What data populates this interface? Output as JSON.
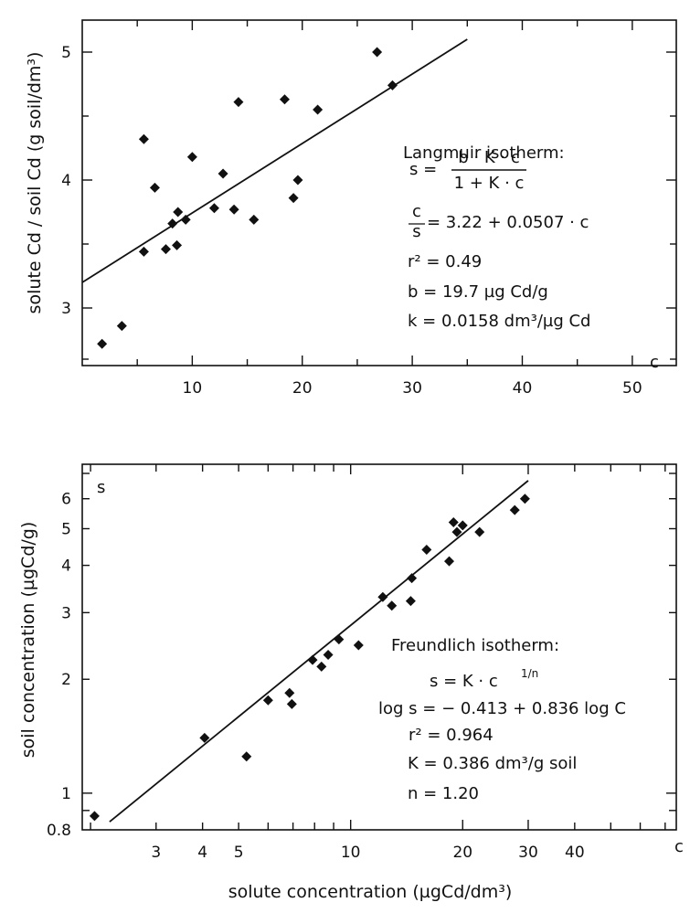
{
  "chart_data": [
    {
      "type": "scatter",
      "title": "",
      "ylabel": "solute Cd / soil Cd (g soil/dm³)",
      "xlabel": "",
      "x_corner_label": "c",
      "xlim": [
        0,
        54
      ],
      "ylim": [
        2.55,
        5.25
      ],
      "x_ticks": [
        10,
        20,
        30,
        40,
        50
      ],
      "y_ticks": [
        3,
        4,
        5
      ],
      "grid": false,
      "points": [
        {
          "x": 1.8,
          "y": 2.72
        },
        {
          "x": 3.6,
          "y": 2.86
        },
        {
          "x": 5.6,
          "y": 3.44
        },
        {
          "x": 5.6,
          "y": 4.32
        },
        {
          "x": 6.6,
          "y": 3.94
        },
        {
          "x": 7.6,
          "y": 3.46
        },
        {
          "x": 8.2,
          "y": 3.66
        },
        {
          "x": 8.6,
          "y": 3.49
        },
        {
          "x": 8.7,
          "y": 3.75
        },
        {
          "x": 9.4,
          "y": 3.69
        },
        {
          "x": 10.0,
          "y": 4.18
        },
        {
          "x": 12.0,
          "y": 3.78
        },
        {
          "x": 12.8,
          "y": 4.05
        },
        {
          "x": 13.8,
          "y": 3.77
        },
        {
          "x": 14.2,
          "y": 4.61
        },
        {
          "x": 15.6,
          "y": 3.69
        },
        {
          "x": 18.4,
          "y": 4.63
        },
        {
          "x": 19.2,
          "y": 3.86
        },
        {
          "x": 19.6,
          "y": 4.0
        },
        {
          "x": 21.4,
          "y": 4.55
        },
        {
          "x": 26.8,
          "y": 5.0
        },
        {
          "x": 28.2,
          "y": 4.74
        }
      ],
      "fit_line": {
        "x": [
          0,
          35
        ],
        "y": [
          3.2,
          5.1
        ]
      },
      "annotations": {
        "title": "Langmuir isotherm:",
        "eq_lhs": "s =",
        "eq_num": "b · K · c",
        "eq_den": "1 + K · c",
        "frac_num": "c",
        "frac_den": "s",
        "fit_rhs": "= 3.22 + 0.0507 · c",
        "r2": "r² = 0.49",
        "b": "b = 19.7 µg Cd/g",
        "k": "k = 0.0158 dm³/µg Cd"
      }
    },
    {
      "type": "scatter",
      "title": "",
      "ylabel": "soil concentration (µgCd/g)",
      "xlabel": "solute concentration (µgCd/dm³)",
      "y_corner_label": "s",
      "x_corner_label": "c",
      "x_scale": "log",
      "y_scale": "log",
      "xlim": [
        1.9,
        75
      ],
      "ylim": [
        0.8,
        7.4
      ],
      "x_ticks": [
        3,
        4,
        5,
        10,
        20,
        30,
        40
      ],
      "y_ticks": [
        0.8,
        1,
        2,
        3,
        4,
        5,
        6
      ],
      "grid": false,
      "points": [
        {
          "x": 2.05,
          "y": 0.87
        },
        {
          "x": 4.05,
          "y": 1.4
        },
        {
          "x": 5.25,
          "y": 1.25
        },
        {
          "x": 6.0,
          "y": 1.76
        },
        {
          "x": 6.85,
          "y": 1.84
        },
        {
          "x": 6.95,
          "y": 1.72
        },
        {
          "x": 7.9,
          "y": 2.25
        },
        {
          "x": 8.35,
          "y": 2.16
        },
        {
          "x": 8.7,
          "y": 2.32
        },
        {
          "x": 9.3,
          "y": 2.55
        },
        {
          "x": 10.5,
          "y": 2.46
        },
        {
          "x": 12.2,
          "y": 3.3
        },
        {
          "x": 12.9,
          "y": 3.13
        },
        {
          "x": 14.5,
          "y": 3.22
        },
        {
          "x": 14.6,
          "y": 3.7
        },
        {
          "x": 16.0,
          "y": 4.4
        },
        {
          "x": 18.4,
          "y": 4.1
        },
        {
          "x": 18.9,
          "y": 5.2
        },
        {
          "x": 19.3,
          "y": 4.9
        },
        {
          "x": 20.0,
          "y": 5.1
        },
        {
          "x": 22.2,
          "y": 4.9
        },
        {
          "x": 27.6,
          "y": 5.6
        },
        {
          "x": 29.4,
          "y": 6.0
        }
      ],
      "fit_line": {
        "x": [
          2.25,
          30
        ],
        "y": [
          0.84,
          6.7
        ]
      },
      "annotations": {
        "title": "Freundlich isotherm:",
        "model": "s = K · c",
        "model_exp": "1/n",
        "loglin": "log s = − 0.413 + 0.836 log C",
        "r2": "r² =  0.964",
        "K": "K  =  0.386 dm³/g soil",
        "n": "n  =  1.20"
      }
    }
  ]
}
